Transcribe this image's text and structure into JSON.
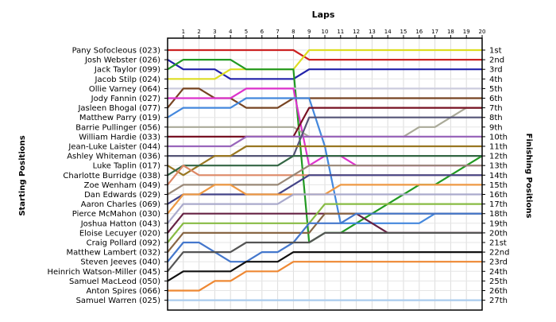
{
  "chart_data": {
    "type": "line",
    "title": "Laps",
    "ylabel_left": "Starting Positions",
    "ylabel_right": "Finishing Positions",
    "x": [
      0,
      1,
      2,
      3,
      4,
      5,
      6,
      7,
      8,
      9,
      10,
      11,
      12,
      13,
      14,
      15,
      16,
      17,
      18,
      19,
      20
    ],
    "x_ticks": [
      "1",
      "2",
      "3",
      "4",
      "5",
      "6",
      "7",
      "8",
      "9",
      "10",
      "11",
      "12",
      "13",
      "14",
      "15",
      "16",
      "17",
      "18",
      "19",
      "20"
    ],
    "ylim": [
      1,
      27
    ],
    "grid": true,
    "drivers": [
      "Pany Sofocleous (023)",
      "Josh Webster (026)",
      "Jack Taylor (099)",
      "Jacob Stilp (024)",
      "Ollie Varney (064)",
      "Jody Fannin (027)",
      "Jasleen Bhogal (077)",
      "Matthew Parry (019)",
      "Barrie Pullinger (056)",
      "William Hardie (033)",
      "Jean-Luke Laister (044)",
      "Ashley Whiteman (036)",
      "Luke Taplin (017)",
      "Charlotte Burridge (038)",
      "Zoe Wenham (049)",
      "Dan Edwards (029)",
      "Aaron Charles (069)",
      "Pierce McMahon (030)",
      "Joshua Hatton (043)",
      "Eloise Lecuyer (020)",
      "Craig Pollard (092)",
      "Matthew Lambert (032)",
      "Steven Jeeves (040)",
      "Heinrich Watson-Miller (045)",
      "Samuel MacLeod (050)",
      "Anton Spires (066)",
      "Samuel Warren (025)"
    ],
    "finish_labels": [
      "1st",
      "2nd",
      "3rd",
      "4th",
      "5th",
      "6th",
      "7th",
      "8th",
      "9th",
      "10th",
      "11th",
      "12th",
      "13th",
      "14th",
      "15th",
      "16th",
      "17th",
      "18th",
      "19th",
      "20th",
      "21st",
      "22nd",
      "23rd",
      "24th",
      "25th",
      "26th",
      "27th"
    ],
    "series": [
      {
        "color": "#cc2222",
        "values": [
          1,
          1,
          1,
          1,
          1,
          1,
          1,
          1,
          1,
          2,
          2,
          2,
          2,
          2,
          2,
          2,
          2,
          2,
          2,
          2,
          2
        ]
      },
      {
        "color": "#2222aa",
        "values": [
          2,
          3,
          3,
          3,
          4,
          4,
          4,
          4,
          4,
          3,
          3,
          3,
          3,
          3,
          3,
          3,
          3,
          3,
          3,
          3,
          3
        ]
      },
      {
        "color": "#dddd22",
        "values": [
          4,
          4,
          4,
          4,
          3,
          3,
          3,
          3,
          3,
          1,
          1,
          1,
          1,
          1,
          1,
          1,
          1,
          1,
          1,
          1,
          1
        ]
      },
      {
        "color": "#229922",
        "values": [
          3,
          2,
          2,
          2,
          2,
          3,
          3,
          3,
          3,
          21,
          20,
          20,
          19,
          18,
          17,
          16,
          15,
          15,
          14,
          13,
          12
        ]
      },
      {
        "color": "#ccccdd",
        "values": [
          5,
          5,
          5,
          5,
          5,
          5,
          5,
          5,
          5,
          5,
          5,
          5,
          5,
          5,
          5,
          5,
          5,
          5,
          5,
          5,
          5
        ]
      },
      {
        "color": "#774422",
        "values": [
          7,
          5,
          5,
          6,
          6,
          7,
          7,
          7,
          6,
          6,
          6,
          6,
          6,
          6,
          6,
          6,
          6,
          6,
          6,
          6,
          6
        ]
      },
      {
        "color": "#dd33cc",
        "values": [
          6,
          6,
          6,
          6,
          6,
          5,
          5,
          5,
          5,
          13,
          12,
          12,
          13,
          13,
          13,
          13,
          13,
          13,
          13,
          13,
          13
        ]
      },
      {
        "color": "#4488dd",
        "values": [
          8,
          7,
          7,
          7,
          7,
          6,
          6,
          6,
          6,
          6,
          11,
          19,
          19,
          19,
          19,
          19,
          19,
          18,
          18,
          18,
          18
        ]
      },
      {
        "color": "#aaaa99",
        "values": [
          9,
          9,
          9,
          9,
          9,
          9,
          9,
          9,
          9,
          10,
          10,
          10,
          10,
          10,
          10,
          10,
          9,
          9,
          8,
          7,
          7
        ]
      },
      {
        "color": "#771122",
        "values": [
          10,
          10,
          10,
          10,
          10,
          10,
          10,
          10,
          10,
          7,
          7,
          7,
          7,
          7,
          7,
          7,
          7,
          7,
          7,
          7,
          7
        ]
      },
      {
        "color": "#9966bb",
        "values": [
          11,
          11,
          11,
          11,
          11,
          10,
          10,
          10,
          10,
          10,
          10,
          10,
          10,
          10,
          10,
          10,
          10,
          10,
          10,
          10,
          10
        ]
      },
      {
        "color": "#555577",
        "values": [
          12,
          12,
          12,
          12,
          12,
          12,
          12,
          12,
          12,
          8,
          8,
          8,
          8,
          8,
          8,
          8,
          8,
          8,
          8,
          8,
          8
        ]
      },
      {
        "color": "#997722",
        "values": [
          13,
          14,
          13,
          12,
          12,
          11,
          11,
          11,
          11,
          11,
          11,
          11,
          11,
          11,
          11,
          11,
          11,
          11,
          11,
          11,
          11
        ]
      },
      {
        "color": "#336644",
        "values": [
          14,
          13,
          13,
          13,
          13,
          13,
          13,
          13,
          12,
          12,
          12,
          12,
          12,
          12,
          12,
          12,
          12,
          12,
          12,
          12,
          12
        ]
      },
      {
        "color": "#dd8866",
        "values": [
          15,
          13,
          14,
          14,
          14,
          14,
          14,
          14,
          14,
          14,
          14,
          14,
          14,
          14,
          14,
          14,
          14,
          14,
          14,
          14,
          14
        ]
      },
      {
        "color": "#998877",
        "values": [
          16,
          15,
          15,
          15,
          15,
          15,
          15,
          15,
          14,
          13,
          13,
          13,
          13,
          13,
          13,
          13,
          13,
          13,
          13,
          13,
          13
        ]
      },
      {
        "color": "#444488",
        "values": [
          17,
          16,
          16,
          16,
          16,
          16,
          16,
          16,
          15,
          14,
          14,
          14,
          14,
          14,
          14,
          14,
          14,
          14,
          14,
          14,
          14
        ]
      },
      {
        "color": "#ee9944",
        "values": [
          18,
          16,
          16,
          15,
          15,
          16,
          16,
          16,
          16,
          16,
          16,
          15,
          15,
          15,
          15,
          15,
          15,
          15,
          15,
          15,
          15
        ]
      },
      {
        "color": "#aaaacc",
        "values": [
          19,
          17,
          17,
          17,
          17,
          17,
          17,
          17,
          16,
          16,
          16,
          16,
          16,
          16,
          16,
          16,
          16,
          16,
          16,
          16,
          16
        ]
      },
      {
        "color": "#662244",
        "values": [
          20,
          18,
          18,
          18,
          18,
          18,
          18,
          18,
          18,
          18,
          18,
          18,
          18,
          19,
          20,
          20,
          20,
          20,
          20,
          20,
          20
        ]
      },
      {
        "color": "#88bb44",
        "values": [
          21,
          19,
          19,
          19,
          19,
          19,
          19,
          19,
          19,
          19,
          17,
          17,
          17,
          17,
          17,
          17,
          17,
          17,
          17,
          17,
          17
        ]
      },
      {
        "color": "#886644",
        "values": [
          22,
          20,
          20,
          20,
          20,
          20,
          20,
          20,
          20,
          20,
          18,
          18,
          18,
          18,
          18,
          18,
          18,
          18,
          18,
          18,
          18
        ]
      },
      {
        "color": "#4477cc",
        "values": [
          23,
          21,
          21,
          22,
          23,
          23,
          22,
          22,
          21,
          19,
          19,
          19,
          18,
          18,
          18,
          18,
          18,
          18,
          18,
          18,
          18
        ]
      },
      {
        "color": "#555555",
        "values": [
          24,
          22,
          22,
          22,
          22,
          21,
          21,
          21,
          21,
          21,
          20,
          20,
          20,
          20,
          20,
          20,
          20,
          20,
          20,
          20,
          20
        ]
      },
      {
        "color": "#111111",
        "values": [
          25,
          24,
          24,
          24,
          24,
          23,
          23,
          23,
          22,
          22,
          22,
          22,
          22,
          22,
          22,
          22,
          22,
          22,
          22,
          22,
          22
        ]
      },
      {
        "color": "#ee8833",
        "values": [
          26,
          26,
          26,
          25,
          25,
          24,
          24,
          24,
          23,
          23,
          23,
          23,
          23,
          23,
          23,
          23,
          23,
          23,
          23,
          23,
          23
        ]
      },
      {
        "color": "#aaccee",
        "values": [
          27,
          27,
          27,
          27,
          27,
          27,
          27,
          27,
          27,
          27,
          27,
          27,
          27,
          27,
          27,
          27,
          27,
          27,
          27,
          27,
          27
        ]
      }
    ]
  }
}
